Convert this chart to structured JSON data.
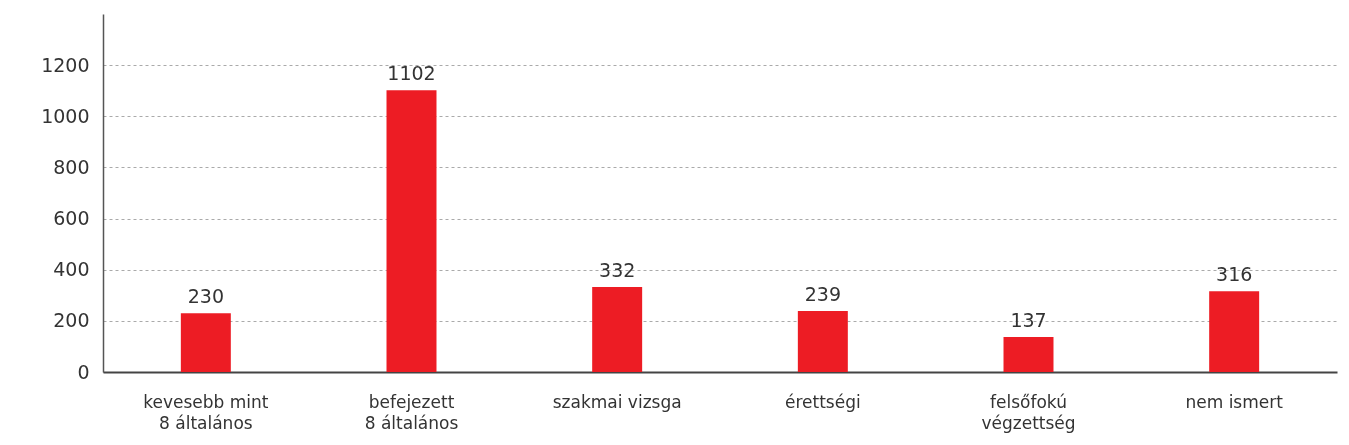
{
  "chart_data": {
    "type": "bar",
    "categories": [
      "kevesebb mint\n8 általános",
      "befejezett\n8 általános",
      "szakmai vizsga",
      "érettségi",
      "felsőfokú\nvégzettség",
      "nem ismert"
    ],
    "values": [
      230,
      1102,
      332,
      239,
      137,
      316
    ],
    "color": "#ed1c24",
    "ylim": [
      0,
      1400
    ],
    "yticks": [
      0,
      200,
      400,
      600,
      800,
      1000,
      1200
    ],
    "grid": "y",
    "data_labels": true
  }
}
